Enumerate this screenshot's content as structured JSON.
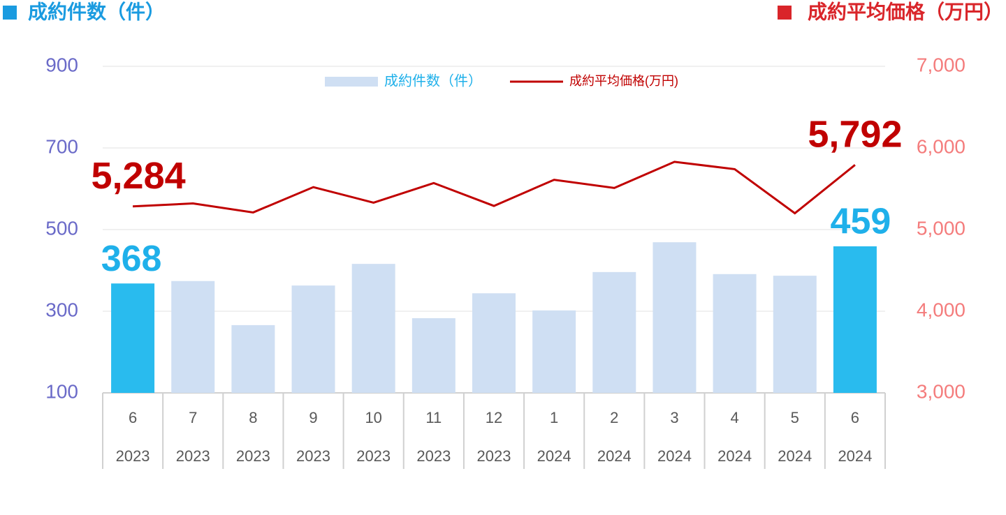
{
  "chart_data": {
    "type": "bar_line",
    "left_title": "成約件数（件）",
    "right_title": "成約平均価格（万円）",
    "categories": [
      "6",
      "7",
      "8",
      "9",
      "10",
      "11",
      "12",
      "1",
      "2",
      "3",
      "4",
      "5",
      "6"
    ],
    "category_years": [
      "2023",
      "2023",
      "2023",
      "2023",
      "2023",
      "2023",
      "2023",
      "2024",
      "2024",
      "2024",
      "2024",
      "2024",
      "2024"
    ],
    "series": [
      {
        "name": "成約件数（件）",
        "type": "bar",
        "axis": "y",
        "colors": [
          "#29bbee",
          "#cfdff3",
          "#cfdff3",
          "#cfdff3",
          "#cfdff3",
          "#cfdff3",
          "#cfdff3",
          "#cfdff3",
          "#cfdff3",
          "#cfdff3",
          "#cfdff3",
          "#cfdff3",
          "#29bbee"
        ],
        "legend_color": "#cfdff3",
        "label_color": "#1fb0ea",
        "values": [
          368,
          374,
          266,
          363,
          416,
          283,
          344,
          302,
          396,
          469,
          391,
          387,
          459
        ],
        "value_labels": [
          "368",
          null,
          null,
          null,
          null,
          null,
          null,
          null,
          null,
          null,
          null,
          null,
          "459"
        ]
      },
      {
        "name": "成約平均価格(万円)",
        "type": "line",
        "axis": "y2",
        "color": "#c00000",
        "values": [
          5284,
          5320,
          5210,
          5520,
          5330,
          5570,
          5290,
          5610,
          5510,
          5830,
          5740,
          5200,
          5792
        ],
        "value_labels": [
          "5,284",
          null,
          null,
          null,
          null,
          null,
          null,
          null,
          null,
          null,
          null,
          null,
          "5,792"
        ]
      }
    ],
    "ylim": [
      100,
      900
    ],
    "yticks": [
      100,
      300,
      500,
      700,
      900
    ],
    "y2lim": [
      3000,
      7000
    ],
    "y2ticks": [
      {
        "value": 3000,
        "label": "3,000"
      },
      {
        "value": 4000,
        "label": "4,000"
      },
      {
        "value": 5000,
        "label": "5,000"
      },
      {
        "value": 6000,
        "label": "6,000"
      },
      {
        "value": 7000,
        "label": "7,000"
      }
    ],
    "grid": true
  }
}
